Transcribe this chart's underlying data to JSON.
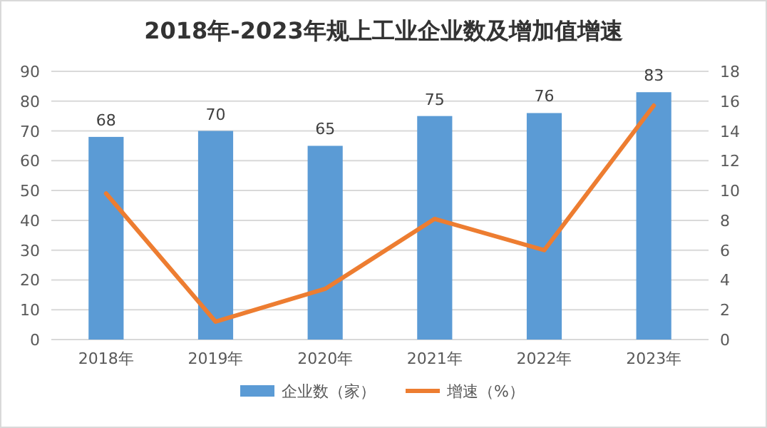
{
  "chart_data": {
    "type": "bar",
    "title": "2018年-2023年规上工业企业数及增加值增速",
    "categories": [
      "2018年",
      "2019年",
      "2020年",
      "2021年",
      "2022年",
      "2023年"
    ],
    "series": [
      {
        "name": "企业数（家）",
        "color": "#5b9bd5",
        "values": [
          68,
          70,
          65,
          75,
          76,
          83
        ],
        "value_labels": [
          "68",
          "70",
          "65",
          "75",
          "76",
          "83"
        ]
      },
      {
        "name": "增速（%）",
        "type": "line",
        "axis": "y2",
        "color": "#ed7d31",
        "values": [
          9.8,
          1.2,
          3.4,
          8.1,
          6.0,
          15.7
        ]
      }
    ],
    "ylim": [
      0,
      90
    ],
    "yticks": [
      0,
      10,
      20,
      30,
      40,
      50,
      60,
      70,
      80,
      90
    ],
    "y2lim": [
      0,
      18
    ],
    "y2ticks": [
      0,
      2,
      4,
      6,
      8,
      10,
      12,
      14,
      16,
      18
    ],
    "grid": "y",
    "legend": "bottom",
    "marker": "none"
  }
}
